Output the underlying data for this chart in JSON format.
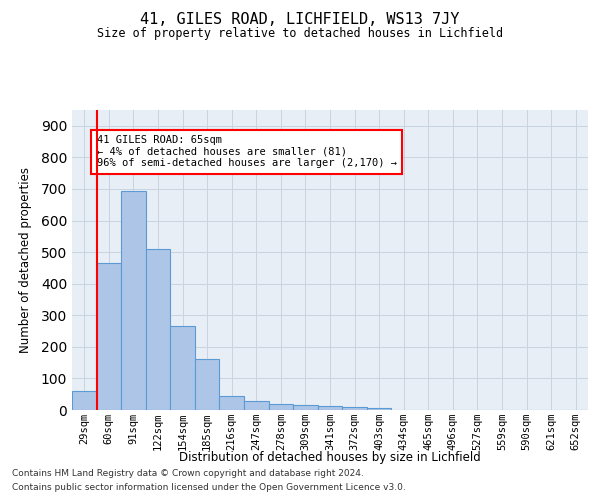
{
  "title1": "41, GILES ROAD, LICHFIELD, WS13 7JY",
  "title2": "Size of property relative to detached houses in Lichfield",
  "xlabel": "Distribution of detached houses by size in Lichfield",
  "ylabel": "Number of detached properties",
  "categories": [
    "29sqm",
    "60sqm",
    "91sqm",
    "122sqm",
    "154sqm",
    "185sqm",
    "216sqm",
    "247sqm",
    "278sqm",
    "309sqm",
    "341sqm",
    "372sqm",
    "403sqm",
    "434sqm",
    "465sqm",
    "496sqm",
    "527sqm",
    "559sqm",
    "590sqm",
    "621sqm",
    "652sqm"
  ],
  "values": [
    60,
    465,
    695,
    510,
    265,
    160,
    45,
    30,
    18,
    15,
    12,
    8,
    5,
    0,
    0,
    0,
    0,
    0,
    0,
    0,
    0
  ],
  "bar_color": "#adc6e8",
  "bar_edge_color": "#5b9bd5",
  "red_line_x": 1,
  "annotation_text": "41 GILES ROAD: 65sqm\n← 4% of detached houses are smaller (81)\n96% of semi-detached houses are larger (2,170) →",
  "annotation_box_color": "white",
  "annotation_box_edge": "red",
  "ylim": [
    0,
    950
  ],
  "yticks": [
    0,
    100,
    200,
    300,
    400,
    500,
    600,
    700,
    800,
    900
  ],
  "grid_color": "#c8d4e0",
  "bg_color": "#e8eef5",
  "footer1": "Contains HM Land Registry data © Crown copyright and database right 2024.",
  "footer2": "Contains public sector information licensed under the Open Government Licence v3.0."
}
